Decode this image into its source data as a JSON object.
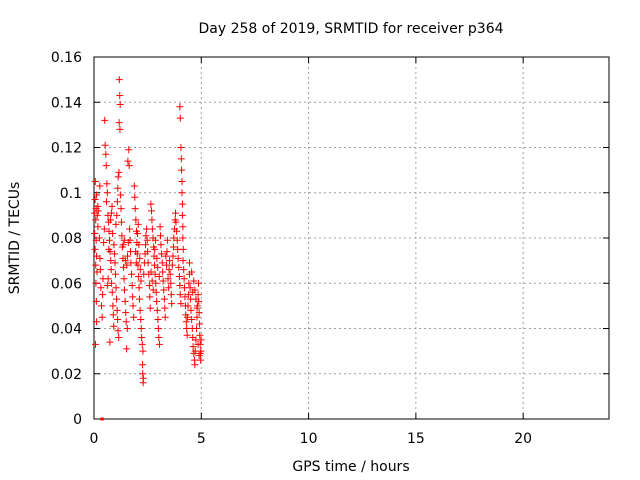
{
  "chart_data": {
    "type": "scatter",
    "title": "Day 258 of 2019, SRMTID for receiver p364",
    "xlabel": "GPS time / hours",
    "ylabel": "SRMTID / TECUs",
    "xlim": [
      0,
      24
    ],
    "ylim": [
      0,
      0.16
    ],
    "grid": true,
    "marker": "+",
    "marker_color": "#ff0000",
    "x_ticks": [
      0,
      5,
      10,
      15,
      20
    ],
    "x_tick_labels": [
      "0",
      "5",
      "10",
      "15",
      "20"
    ],
    "y_ticks": [
      0,
      0.02,
      0.04,
      0.06,
      0.08,
      0.1,
      0.12,
      0.14,
      0.16
    ],
    "y_tick_labels": [
      "0",
      "0.02",
      "0.04",
      "0.06",
      "0.08",
      "0.1",
      "0.12",
      "0.14",
      "0.16"
    ],
    "series": [
      {
        "name": "p364",
        "points": [
          [
            0.02,
            0.091
          ],
          [
            0.05,
            0.097
          ],
          [
            0.08,
            0.088
          ],
          [
            0.1,
            0.093
          ],
          [
            0.12,
            0.099
          ],
          [
            0.15,
            0.09
          ],
          [
            0.18,
            0.094
          ],
          [
            0.05,
            0.075
          ],
          [
            0.08,
            0.068
          ],
          [
            0.1,
            0.079
          ],
          [
            0.12,
            0.072
          ],
          [
            0.03,
            0.082
          ],
          [
            0.06,
            0.105
          ],
          [
            0.09,
            0.06
          ],
          [
            0.11,
            0.052
          ],
          [
            0.14,
            0.065
          ],
          [
            0.07,
            0.033
          ],
          [
            0.12,
            0.043
          ],
          [
            0.18,
            0.085
          ],
          [
            0.2,
            0.092
          ],
          [
            0.25,
            0.08
          ],
          [
            0.28,
            0.071
          ],
          [
            0.3,
            0.066
          ],
          [
            0.32,
            0.058
          ],
          [
            0.27,
            0.103
          ],
          [
            0.35,
            0.05
          ],
          [
            0.38,
            0.045
          ],
          [
            0.4,
            0.055
          ],
          [
            0.42,
            0.062
          ],
          [
            0.45,
            0.078
          ],
          [
            0.48,
            0.084
          ],
          [
            0.5,
            0.132
          ],
          [
            0.52,
            0.121
          ],
          [
            0.55,
            0.117
          ],
          [
            0.57,
            0.112
          ],
          [
            0.6,
            0.104
          ],
          [
            0.62,
            0.1
          ],
          [
            0.58,
            0.096
          ],
          [
            0.65,
            0.09
          ],
          [
            0.68,
            0.087
          ],
          [
            0.7,
            0.083
          ],
          [
            0.72,
            0.079
          ],
          [
            0.75,
            0.074
          ],
          [
            0.78,
            0.07
          ],
          [
            0.8,
            0.066
          ],
          [
            0.82,
            0.06
          ],
          [
            0.85,
            0.056
          ],
          [
            0.88,
            0.05
          ],
          [
            0.9,
            0.046
          ],
          [
            0.92,
            0.041
          ],
          [
            0.62,
            0.059
          ],
          [
            0.66,
            0.062
          ],
          [
            0.74,
            0.034
          ],
          [
            0.69,
            0.075
          ],
          [
            0.77,
            0.088
          ],
          [
            0.81,
            0.091
          ],
          [
            0.84,
            0.094
          ],
          [
            0.87,
            0.082
          ],
          [
            0.93,
            0.077
          ],
          [
            0.96,
            0.073
          ],
          [
            0.98,
            0.069
          ],
          [
            1.0,
            0.064
          ],
          [
            1.03,
            0.058
          ],
          [
            1.05,
            0.053
          ],
          [
            1.08,
            0.048
          ],
          [
            1.1,
            0.044
          ],
          [
            1.12,
            0.039
          ],
          [
            1.15,
            0.036
          ],
          [
            1.02,
            0.086
          ],
          [
            1.06,
            0.09
          ],
          [
            1.09,
            0.096
          ],
          [
            1.11,
            0.102
          ],
          [
            1.13,
            0.107
          ],
          [
            1.16,
            0.109
          ],
          [
            1.18,
            0.15
          ],
          [
            1.2,
            0.143
          ],
          [
            1.22,
            0.139
          ],
          [
            1.17,
            0.131
          ],
          [
            1.21,
            0.128
          ],
          [
            1.24,
            0.099
          ],
          [
            1.26,
            0.093
          ],
          [
            1.28,
            0.087
          ],
          [
            1.3,
            0.081
          ],
          [
            1.32,
            0.076
          ],
          [
            1.35,
            0.071
          ],
          [
            1.38,
            0.067
          ],
          [
            1.4,
            0.062
          ],
          [
            1.42,
            0.057
          ],
          [
            1.45,
            0.052
          ],
          [
            1.48,
            0.047
          ],
          [
            1.5,
            0.043
          ],
          [
            1.52,
            0.031
          ],
          [
            1.55,
            0.04
          ],
          [
            1.36,
            0.077
          ],
          [
            1.41,
            0.079
          ],
          [
            1.46,
            0.07
          ],
          [
            1.53,
            0.068
          ],
          [
            1.56,
            0.072
          ],
          [
            1.6,
            0.078
          ],
          [
            1.58,
            0.114
          ],
          [
            1.62,
            0.119
          ],
          [
            1.64,
            0.112
          ],
          [
            1.66,
            0.084
          ],
          [
            1.68,
            0.079
          ],
          [
            1.7,
            0.074
          ],
          [
            1.72,
            0.069
          ],
          [
            1.75,
            0.064
          ],
          [
            1.78,
            0.059
          ],
          [
            1.8,
            0.054
          ],
          [
            1.82,
            0.05
          ],
          [
            1.85,
            0.045
          ],
          [
            1.88,
            0.103
          ],
          [
            1.9,
            0.098
          ],
          [
            1.92,
            0.093
          ],
          [
            1.95,
            0.088
          ],
          [
            1.98,
            0.083
          ],
          [
            2.0,
            0.078
          ],
          [
            2.02,
            0.073
          ],
          [
            2.05,
            0.068
          ],
          [
            2.08,
            0.063
          ],
          [
            2.1,
            0.058
          ],
          [
            2.12,
            0.053
          ],
          [
            2.15,
            0.048
          ],
          [
            2.18,
            0.044
          ],
          [
            2.2,
            0.04
          ],
          [
            2.22,
            0.036
          ],
          [
            2.25,
            0.033
          ],
          [
            2.28,
            0.03
          ],
          [
            2.26,
            0.024
          ],
          [
            2.27,
            0.02
          ],
          [
            2.29,
            0.016
          ],
          [
            2.3,
            0.018
          ],
          [
            1.94,
            0.074
          ],
          [
            1.97,
            0.069
          ],
          [
            2.03,
            0.082
          ],
          [
            2.06,
            0.086
          ],
          [
            2.09,
            0.077
          ],
          [
            2.13,
            0.071
          ],
          [
            2.16,
            0.066
          ],
          [
            2.19,
            0.061
          ],
          [
            2.32,
            0.064
          ],
          [
            2.35,
            0.069
          ],
          [
            2.38,
            0.073
          ],
          [
            2.4,
            0.077
          ],
          [
            2.42,
            0.081
          ],
          [
            2.45,
            0.084
          ],
          [
            2.48,
            0.079
          ],
          [
            2.5,
            0.074
          ],
          [
            2.52,
            0.069
          ],
          [
            2.55,
            0.064
          ],
          [
            2.58,
            0.059
          ],
          [
            2.6,
            0.054
          ],
          [
            2.62,
            0.049
          ],
          [
            2.65,
            0.095
          ],
          [
            2.68,
            0.092
          ],
          [
            2.7,
            0.088
          ],
          [
            2.72,
            0.084
          ],
          [
            2.75,
            0.08
          ],
          [
            2.78,
            0.076
          ],
          [
            2.8,
            0.072
          ],
          [
            2.82,
            0.068
          ],
          [
            2.85,
            0.064
          ],
          [
            2.88,
            0.06
          ],
          [
            2.9,
            0.056
          ],
          [
            2.92,
            0.052
          ],
          [
            2.95,
            0.048
          ],
          [
            2.98,
            0.044
          ],
          [
            3.0,
            0.04
          ],
          [
            3.02,
            0.036
          ],
          [
            3.05,
            0.033
          ],
          [
            2.66,
            0.065
          ],
          [
            2.71,
            0.061
          ],
          [
            2.76,
            0.057
          ],
          [
            2.83,
            0.075
          ],
          [
            2.87,
            0.079
          ],
          [
            2.93,
            0.071
          ],
          [
            2.97,
            0.067
          ],
          [
            3.04,
            0.063
          ],
          [
            3.08,
            0.085
          ],
          [
            3.1,
            0.081
          ],
          [
            3.12,
            0.077
          ],
          [
            3.15,
            0.073
          ],
          [
            3.18,
            0.069
          ],
          [
            3.2,
            0.065
          ],
          [
            3.22,
            0.061
          ],
          [
            3.25,
            0.057
          ],
          [
            3.28,
            0.053
          ],
          [
            3.3,
            0.049
          ],
          [
            3.32,
            0.045
          ],
          [
            3.35,
            0.072
          ],
          [
            3.38,
            0.068
          ],
          [
            3.4,
            0.074
          ],
          [
            3.42,
            0.079
          ],
          [
            3.45,
            0.062
          ],
          [
            3.48,
            0.058
          ],
          [
            3.5,
            0.066
          ],
          [
            3.52,
            0.07
          ],
          [
            3.55,
            0.064
          ],
          [
            3.58,
            0.06
          ],
          [
            3.6,
            0.055
          ],
          [
            3.62,
            0.051
          ],
          [
            3.65,
            0.068
          ],
          [
            3.68,
            0.072
          ],
          [
            3.7,
            0.076
          ],
          [
            3.72,
            0.08
          ],
          [
            3.75,
            0.084
          ],
          [
            3.78,
            0.088
          ],
          [
            3.8,
            0.091
          ],
          [
            3.82,
            0.087
          ],
          [
            3.85,
            0.083
          ],
          [
            3.88,
            0.079
          ],
          [
            3.9,
            0.075
          ],
          [
            3.92,
            0.071
          ],
          [
            3.95,
            0.067
          ],
          [
            3.98,
            0.063
          ],
          [
            4.0,
            0.059
          ],
          [
            4.02,
            0.055
          ],
          [
            4.05,
            0.051
          ],
          [
            4.0,
            0.138
          ],
          [
            4.02,
            0.133
          ],
          [
            4.05,
            0.12
          ],
          [
            4.07,
            0.115
          ],
          [
            4.08,
            0.11
          ],
          [
            4.1,
            0.105
          ],
          [
            4.1,
            0.1
          ],
          [
            4.12,
            0.095
          ],
          [
            4.12,
            0.09
          ],
          [
            4.14,
            0.085
          ],
          [
            4.14,
            0.08
          ],
          [
            4.16,
            0.075
          ],
          [
            4.15,
            0.07
          ],
          [
            4.18,
            0.066
          ],
          [
            4.2,
            0.062
          ],
          [
            4.22,
            0.058
          ],
          [
            4.24,
            0.054
          ],
          [
            4.26,
            0.05
          ],
          [
            4.28,
            0.046
          ],
          [
            4.3,
            0.043
          ],
          [
            4.32,
            0.04
          ],
          [
            4.34,
            0.037
          ],
          [
            4.36,
            0.045
          ],
          [
            4.38,
            0.05
          ],
          [
            4.4,
            0.055
          ],
          [
            4.42,
            0.06
          ],
          [
            4.45,
            0.064
          ],
          [
            4.48,
            0.058
          ],
          [
            4.5,
            0.053
          ],
          [
            4.52,
            0.048
          ],
          [
            4.55,
            0.044
          ],
          [
            4.58,
            0.04
          ],
          [
            4.6,
            0.036
          ],
          [
            4.62,
            0.032
          ],
          [
            4.65,
            0.029
          ],
          [
            4.68,
            0.026
          ],
          [
            4.7,
            0.024
          ],
          [
            4.72,
            0.03
          ],
          [
            4.75,
            0.035
          ],
          [
            4.78,
            0.04
          ],
          [
            4.8,
            0.045
          ],
          [
            4.82,
            0.05
          ],
          [
            4.85,
            0.055
          ],
          [
            4.87,
            0.06
          ],
          [
            4.88,
            0.052
          ],
          [
            4.9,
            0.047
          ],
          [
            4.92,
            0.042
          ],
          [
            4.93,
            0.037
          ],
          [
            4.95,
            0.033
          ],
          [
            4.96,
            0.029
          ],
          [
            4.97,
            0.026
          ],
          [
            4.98,
            0.03
          ],
          [
            4.99,
            0.035
          ],
          [
            4.6,
            0.056
          ],
          [
            4.65,
            0.061
          ],
          [
            4.7,
            0.057
          ],
          [
            4.75,
            0.053
          ],
          [
            4.8,
            0.049
          ],
          [
            4.85,
            0.033
          ],
          [
            4.9,
            0.028
          ],
          [
            4.55,
            0.065
          ],
          [
            4.45,
            0.069
          ]
        ]
      }
    ],
    "flat_segment": {
      "x": [
        0.3,
        0.45
      ],
      "y": 0
    }
  }
}
